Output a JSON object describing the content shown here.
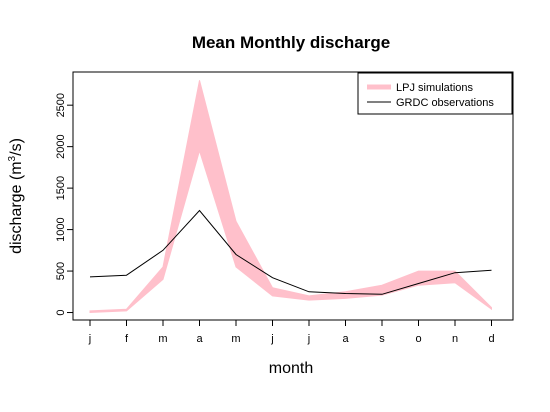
{
  "chart_data": {
    "type": "line",
    "title": "Mean Monthly discharge",
    "xlabel": "month",
    "ylabel_main": "discharge (m",
    "ylabel_sup": "3",
    "ylabel_end": "/s)",
    "categories": [
      "j",
      "f",
      "m",
      "a",
      "m",
      "j",
      "j",
      "a",
      "s",
      "o",
      "n",
      "d"
    ],
    "yticks": [
      0,
      500,
      1000,
      1500,
      2000,
      2500
    ],
    "ytick_labels": [
      "0",
      "500",
      "1000",
      "1500",
      "2000",
      "2500"
    ],
    "ylim": [
      -90,
      2900
    ],
    "legend_position": "top-right",
    "series": [
      {
        "name": "LPJ simulations",
        "kind": "band",
        "color": "#FFC0CB",
        "lower": [
          0,
          20,
          400,
          1950,
          550,
          200,
          150,
          170,
          210,
          330,
          360,
          40
        ],
        "upper": [
          20,
          40,
          550,
          2800,
          1100,
          300,
          200,
          250,
          330,
          500,
          500,
          60
        ]
      },
      {
        "name": "GRDC observations",
        "kind": "line",
        "color": "#000000",
        "values": [
          430,
          450,
          750,
          1230,
          700,
          420,
          250,
          230,
          220,
          350,
          480,
          510
        ]
      }
    ]
  }
}
